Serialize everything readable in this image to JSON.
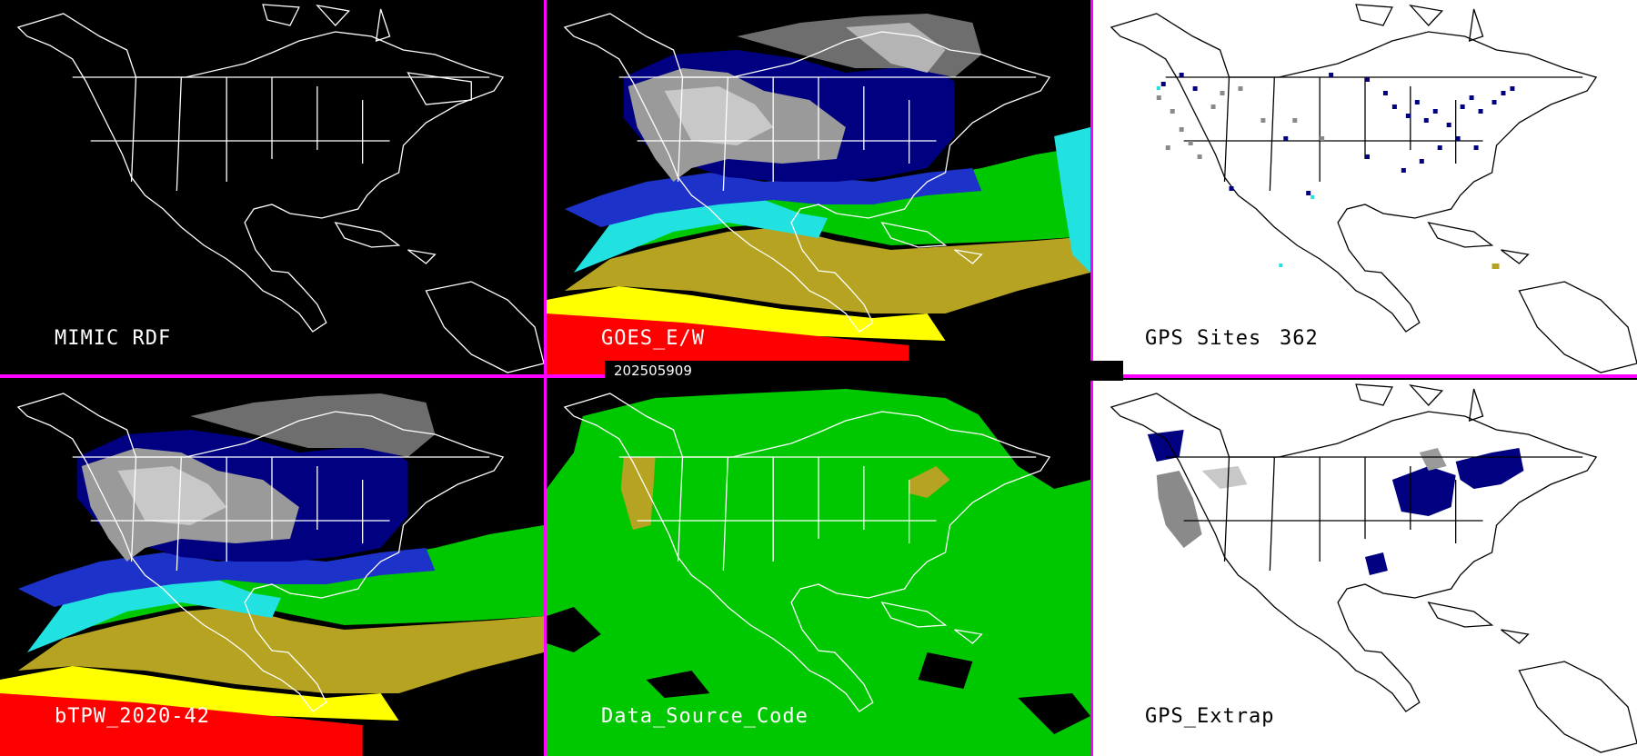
{
  "timestamp": "202505909",
  "colors": {
    "divider": "#ff00ff",
    "black_bg": "#000000",
    "white_bg": "#ffffff"
  },
  "panels": [
    {
      "label": "MIMIC RDF",
      "count": "",
      "theme": "dark"
    },
    {
      "label": "GOES_E/W",
      "count": "",
      "theme": "dark"
    },
    {
      "label": "GPS Sites",
      "count": "362",
      "theme": "light"
    },
    {
      "label": "bTPW_2020-42",
      "count": "",
      "theme": "dark"
    },
    {
      "label": "Data_Source_Code",
      "count": "",
      "theme": "dark"
    },
    {
      "label": "GPS_Extrap",
      "count": "",
      "theme": "light"
    }
  ]
}
